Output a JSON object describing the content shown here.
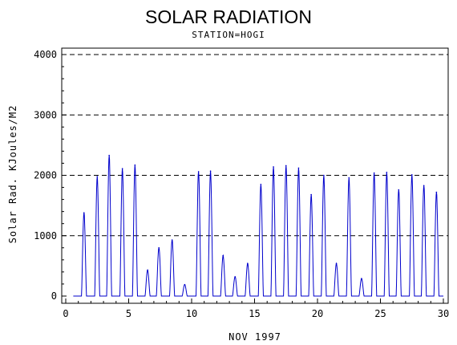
{
  "chart_data": {
    "type": "line",
    "title": "SOLAR RADIATION",
    "subtitle": "STATION=HOGI",
    "xlabel": "NOV 1997",
    "ylabel": "Solar Rad. KJoules/M2",
    "xlim": [
      0,
      30
    ],
    "ylim": [
      0,
      4000
    ],
    "xticks": [
      0,
      5,
      10,
      15,
      20,
      25,
      30
    ],
    "yticks": [
      0,
      1000,
      2000,
      3000,
      4000
    ],
    "grid": "dashed horizontal at y ticks",
    "series_color": "#0000cc",
    "daily_peaks": [
      {
        "day": 1.45,
        "value": 1380
      },
      {
        "day": 2.5,
        "value": 1980
      },
      {
        "day": 3.45,
        "value": 2330
      },
      {
        "day": 4.5,
        "value": 2110
      },
      {
        "day": 5.5,
        "value": 2170
      },
      {
        "day": 6.5,
        "value": 430
      },
      {
        "day": 7.4,
        "value": 800
      },
      {
        "day": 8.45,
        "value": 930
      },
      {
        "day": 9.45,
        "value": 190
      },
      {
        "day": 10.55,
        "value": 2060
      },
      {
        "day": 11.5,
        "value": 2070
      },
      {
        "day": 12.5,
        "value": 670
      },
      {
        "day": 13.45,
        "value": 320
      },
      {
        "day": 14.45,
        "value": 540
      },
      {
        "day": 15.5,
        "value": 1850
      },
      {
        "day": 16.5,
        "value": 2140
      },
      {
        "day": 17.5,
        "value": 2160
      },
      {
        "day": 18.5,
        "value": 2120
      },
      {
        "day": 19.5,
        "value": 1680
      },
      {
        "day": 20.5,
        "value": 2000
      },
      {
        "day": 21.5,
        "value": 540
      },
      {
        "day": 22.5,
        "value": 1960
      },
      {
        "day": 23.5,
        "value": 290
      },
      {
        "day": 24.5,
        "value": 2040
      },
      {
        "day": 25.5,
        "value": 2050
      },
      {
        "day": 26.45,
        "value": 1760
      },
      {
        "day": 27.5,
        "value": 2010
      },
      {
        "day": 28.45,
        "value": 1830
      },
      {
        "day": 29.45,
        "value": 1720
      }
    ]
  }
}
